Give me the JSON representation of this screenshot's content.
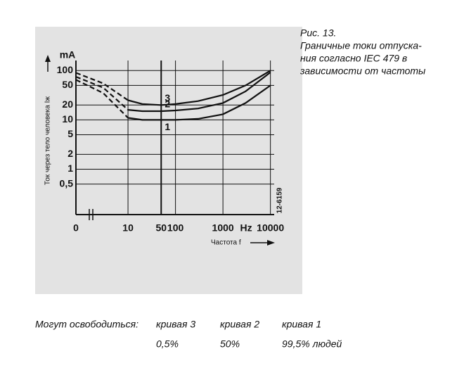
{
  "chart_data": {
    "type": "line",
    "caption": [
      "Рис. 13.",
      "Граничные токи отпуска-",
      "ния согласно IEC 479 в",
      "зависимости от частоты"
    ],
    "y_label": "Ток через тело человека Iж",
    "y_unit": "mA",
    "x_label": "Частота f",
    "x_unit": "Hz",
    "x_origin_label": "0",
    "figure_code": "12-6159",
    "x_log": true,
    "y_log": true,
    "grid": true,
    "xlim": [
      0.8,
      12000
    ],
    "ylim": [
      0.12,
      160
    ],
    "xticks": [
      10,
      50,
      100,
      1000,
      10000
    ],
    "yticks": [
      100,
      50,
      20,
      10,
      5,
      2,
      1,
      {
        "value": 0.5,
        "label": "0,5"
      }
    ],
    "x": [
      0.8,
      3,
      10,
      20,
      50,
      100,
      300,
      1000,
      3000,
      10000
    ],
    "dashed_x_max": 10,
    "series": [
      {
        "name": "1",
        "color": "#111111",
        "values": [
          65,
          35,
          11,
          10,
          10,
          10,
          10.5,
          13,
          22,
          50
        ]
      },
      {
        "name": "2",
        "color": "#111111",
        "values": [
          75,
          45,
          16,
          15,
          15,
          15.5,
          17,
          22,
          38,
          92
        ]
      },
      {
        "name": "3",
        "color": "#111111",
        "values": [
          90,
          55,
          25,
          21,
          20,
          21,
          24,
          32,
          50,
          100
        ]
      }
    ],
    "legend": {
      "heading": "Могут освободиться:",
      "curves": [
        "кривая 3",
        "кривая 2",
        "кривая 1"
      ],
      "shares": [
        "0,5%",
        "50%",
        "99,5% людей"
      ]
    }
  }
}
